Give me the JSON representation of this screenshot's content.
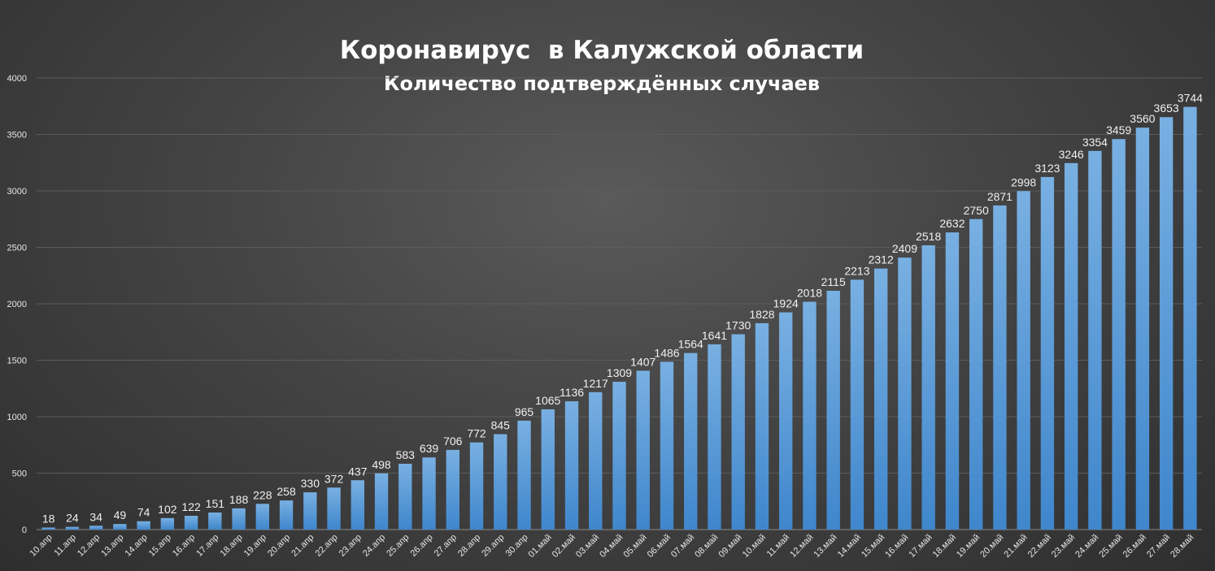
{
  "chart_data": {
    "type": "bar",
    "title": "Коронавирус  в Калужской области",
    "subtitle": "Количество подтверждённых случаев",
    "xlabel": "",
    "ylabel": "",
    "ylim": [
      0,
      4000
    ],
    "yticks": [
      0,
      500,
      1000,
      1500,
      2000,
      2500,
      3000,
      3500,
      4000
    ],
    "grid": true,
    "bar_color": "#5b9bd5",
    "categories": [
      "10.апр",
      "11.апр",
      "12.апр",
      "13.апр",
      "14.апр",
      "15.апр",
      "16.апр",
      "17.апр",
      "18.апр",
      "19.апр",
      "20.апр",
      "21.апр",
      "22.апр",
      "23.апр",
      "24.апр",
      "25.апр",
      "26.апр",
      "27.апр",
      "28.апр",
      "29.апр",
      "30.апр",
      "01.май",
      "02.май",
      "03.май",
      "04.май",
      "05.май",
      "06.май",
      "07.май",
      "08.май",
      "09.май",
      "10.май",
      "11.май",
      "12.май",
      "13.май",
      "14.май",
      "15.май",
      "16.май",
      "17.май",
      "18.май",
      "19.май",
      "20.май",
      "21.май",
      "22.май",
      "23.май",
      "24.май",
      "25.май",
      "26.май",
      "27.май",
      "28.май"
    ],
    "values": [
      18,
      24,
      34,
      49,
      74,
      102,
      122,
      151,
      188,
      228,
      258,
      330,
      372,
      437,
      498,
      583,
      639,
      706,
      772,
      845,
      965,
      1065,
      1136,
      1217,
      1309,
      1407,
      1486,
      1564,
      1641,
      1730,
      1828,
      1924,
      2018,
      2115,
      2213,
      2312,
      2409,
      2518,
      2632,
      2750,
      2871,
      2998,
      3123,
      3246,
      3354,
      3459,
      3560,
      3653,
      3744
    ]
  }
}
